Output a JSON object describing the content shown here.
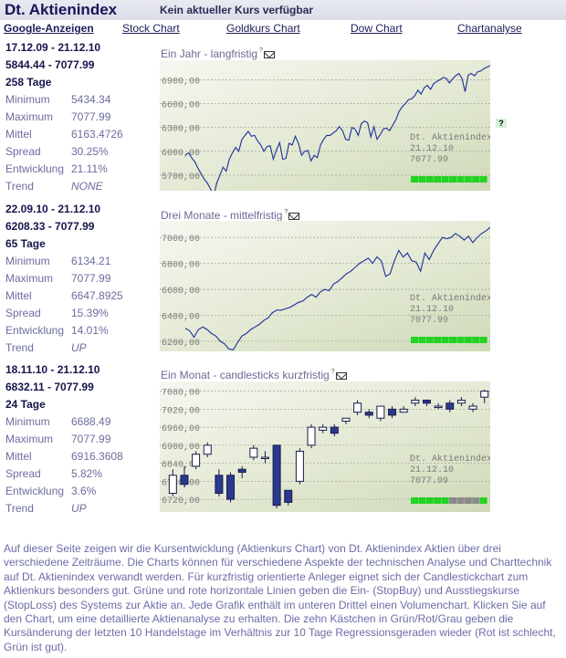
{
  "header": {
    "title": "Dt. Aktienindex",
    "status": "Kein aktueller Kurs verfügbar"
  },
  "nav": [
    {
      "label": "Google-Anzeigen"
    },
    {
      "label": "Stock Chart"
    },
    {
      "label": "Goldkurs Chart"
    },
    {
      "label": "Dow Chart"
    },
    {
      "label": "Chartanalyse"
    }
  ],
  "stat_labels": {
    "min": "Minimum",
    "max": "Maximum",
    "mean": "Mittel",
    "spread": "Spread",
    "dev": "Entwicklung",
    "trend": "Trend"
  },
  "periods": [
    {
      "range": "17.12.09 - 21.12.10",
      "kurs": "5844.44 - 7077.99",
      "tage": "258 Tage",
      "min": "5434.34",
      "max": "7077.99",
      "mean": "6163.4726",
      "spread": "30.25%",
      "dev": "21.11%",
      "trend": "NONE"
    },
    {
      "range": "22.09.10 - 21.12.10",
      "kurs": "6208.33 - 7077.99",
      "tage": "65 Tage",
      "min": "6134.21",
      "max": "7077.99",
      "mean": "6647.8925",
      "spread": "15.39%",
      "dev": "14.01%",
      "trend": "UP"
    },
    {
      "range": "18.11.10 - 21.12.10",
      "kurs": "6832.11 - 7077.99",
      "tage": "24 Tage",
      "min": "6688.49",
      "max": "7077.99",
      "mean": "6916.3608",
      "spread": "5.82%",
      "dev": "3.6%",
      "trend": "UP"
    }
  ],
  "charts": [
    {
      "title": "Ein Jahr - langfristig",
      "tag": "?"
    },
    {
      "title": "Drei Monate - mittelfristig",
      "tag": "?"
    },
    {
      "title": "Ein Monat - candlesticks kurzfristig",
      "tag": "?"
    }
  ],
  "help_label": "?",
  "colors": {
    "line": "#1c2f9a",
    "grid": "#a9ad9e",
    "green": "#22d322",
    "gray": "#8a8a8a",
    "candle_up": "#ffffff",
    "candle_down": "#2b3a8e"
  },
  "chart_data": [
    {
      "type": "line",
      "ylim": [
        5550,
        7100
      ],
      "yticks": [
        5700,
        6000,
        6300,
        6600,
        6900
      ],
      "yticklabels": [
        "5700,00",
        "6000,00",
        "6300,00",
        "6600,00",
        "6900,00"
      ],
      "legend": {
        "name": "Dt. Aktienindex",
        "date": "21.12.10",
        "value": "7077.99"
      },
      "boxes": [
        "green",
        "green",
        "green",
        "green",
        "green",
        "green",
        "green",
        "green",
        "green",
        "green"
      ],
      "values": [
        5950,
        5980,
        5920,
        5870,
        5790,
        5720,
        5650,
        5600,
        5530,
        5434,
        5600,
        5700,
        5800,
        5750,
        5900,
        5980,
        6050,
        6000,
        6150,
        6200,
        6250,
        6190,
        6200,
        6130,
        6080,
        6000,
        6060,
        6070,
        5900,
        6020,
        6110,
        5900,
        5910,
        6100,
        6080,
        6190,
        6100,
        5950,
        6000,
        6010,
        5880,
        5950,
        5920,
        6080,
        6150,
        6200,
        6200,
        6230,
        6260,
        6310,
        6260,
        6150,
        6140,
        6300,
        6280,
        6200,
        6350,
        6380,
        6360,
        6180,
        6310,
        6150,
        6210,
        6280,
        6290,
        6260,
        6330,
        6400,
        6500,
        6560,
        6600,
        6650,
        6660,
        6700,
        6770,
        6720,
        6800,
        6830,
        6780,
        6850,
        6880,
        6900,
        6930,
        6920,
        6860,
        6910,
        6950,
        6980,
        6920,
        6750,
        6960,
        6980,
        6950,
        7000,
        7010,
        7040,
        7060,
        7077.99
      ]
    },
    {
      "type": "line",
      "ylim": [
        6150,
        7100
      ],
      "yticks": [
        6200,
        6400,
        6600,
        6800,
        7000
      ],
      "yticklabels": [
        "6200,00",
        "6400,00",
        "6600,00",
        "6800,00",
        "7000,00"
      ],
      "legend": {
        "name": "Dt. Aktienindex",
        "date": "21.12.10",
        "value": "7077.99"
      },
      "boxes": [
        "green",
        "green",
        "green",
        "green",
        "green",
        "green",
        "green",
        "green",
        "green",
        "green"
      ],
      "values": [
        6300,
        6280,
        6230,
        6290,
        6310,
        6290,
        6260,
        6240,
        6200,
        6180,
        6140,
        6134,
        6190,
        6240,
        6260,
        6290,
        6310,
        6330,
        6360,
        6380,
        6420,
        6440,
        6440,
        6450,
        6460,
        6480,
        6500,
        6510,
        6540,
        6560,
        6540,
        6580,
        6600,
        6590,
        6640,
        6660,
        6690,
        6720,
        6740,
        6770,
        6800,
        6820,
        6840,
        6800,
        6850,
        6820,
        6700,
        6720,
        6820,
        6900,
        6850,
        6880,
        6820,
        6810,
        6740,
        6880,
        6830,
        6900,
        6950,
        7000,
        6990,
        7000,
        7030,
        7010,
        6980,
        7010,
        6960,
        7000,
        7030,
        7050,
        7077.99
      ]
    },
    {
      "type": "candlestick",
      "ylim": [
        6690,
        7100
      ],
      "yticks": [
        6720,
        6780,
        6840,
        6900,
        6960,
        7020,
        7080
      ],
      "yticklabels": [
        "6720,00",
        "6780,00",
        "6840,00",
        "6900,00",
        "6960,00",
        "7020,00",
        "7080,00"
      ],
      "legend": {
        "name": "Dt. Aktienindex",
        "date": "21.12.10",
        "value": "7077.99"
      },
      "boxes": [
        "green",
        "green",
        "green",
        "green",
        "green",
        "gray",
        "gray",
        "gray",
        "gray",
        "green"
      ],
      "candles": [
        {
          "o": 6740,
          "c": 6800,
          "h": 6820,
          "l": 6730
        },
        {
          "o": 6800,
          "c": 6770,
          "h": 6830,
          "l": 6760
        },
        {
          "o": 6830,
          "c": 6870,
          "h": 6880,
          "l": 6820
        },
        {
          "o": 6870,
          "c": 6900,
          "h": 6910,
          "l": 6860
        },
        {
          "o": 6800,
          "c": 6740,
          "h": 6820,
          "l": 6730
        },
        {
          "o": 6800,
          "c": 6720,
          "h": 6810,
          "l": 6710
        },
        {
          "o": 6820,
          "c": 6810,
          "h": 6830,
          "l": 6790
        },
        {
          "o": 6860,
          "c": 6890,
          "h": 6900,
          "l": 6850
        },
        {
          "o": 6860,
          "c": 6860,
          "h": 6880,
          "l": 6840
        },
        {
          "o": 6900,
          "c": 6700,
          "h": 6900,
          "l": 6690
        },
        {
          "o": 6750,
          "c": 6710,
          "h": 6750,
          "l": 6700
        },
        {
          "o": 6780,
          "c": 6880,
          "h": 6890,
          "l": 6770
        },
        {
          "o": 6900,
          "c": 6960,
          "h": 6970,
          "l": 6890
        },
        {
          "o": 6950,
          "c": 6960,
          "h": 6970,
          "l": 6940
        },
        {
          "o": 6960,
          "c": 6940,
          "h": 6970,
          "l": 6930
        },
        {
          "o": 6980,
          "c": 6990,
          "h": 6990,
          "l": 6970
        },
        {
          "o": 7010,
          "c": 7040,
          "h": 7050,
          "l": 7000
        },
        {
          "o": 7010,
          "c": 7000,
          "h": 7020,
          "l": 6990
        },
        {
          "o": 6990,
          "c": 7030,
          "h": 7030,
          "l": 6980
        },
        {
          "o": 7020,
          "c": 7000,
          "h": 7030,
          "l": 6990
        },
        {
          "o": 7010,
          "c": 7020,
          "h": 7030,
          "l": 7010
        },
        {
          "o": 7040,
          "c": 7050,
          "h": 7060,
          "l": 7030
        },
        {
          "o": 7050,
          "c": 7040,
          "h": 7050,
          "l": 7030
        },
        {
          "o": 7030,
          "c": 7030,
          "h": 7040,
          "l": 7020
        },
        {
          "o": 7040,
          "c": 7020,
          "h": 7050,
          "l": 7010
        },
        {
          "o": 7040,
          "c": 7050,
          "h": 7060,
          "l": 7030
        },
        {
          "o": 7020,
          "c": 7030,
          "h": 7040,
          "l": 7010
        },
        {
          "o": 7060,
          "c": 7080,
          "h": 7085,
          "l": 7040
        }
      ]
    }
  ],
  "description": "Auf dieser Seite zeigen wir die Kursentwicklung (Aktienkurs Chart) von Dt. Aktienindex Aktien über drei verschiedene Zeiträume. Die Charts können für verschiedene Aspekte der technischen Analyse und Charttechnik auf Dt. Aktienindex verwandt werden. Für kurzfristig orientierte Anleger eignet sich der Candlestickchart zum Aktienkurs besonders gut. Grüne und rote horizontale Linien geben die Ein- (StopBuy) und Ausstiegskurse (StopLoss) des Systems zur Aktie an. Jede Grafik enthält im unteren Drittel einen Volumenchart. Klicken Sie auf den Chart, um eine detaillierte Aktienanalyse zu erhalten. Die zehn Kästchen in Grün/Rot/Grau geben die Kursänderung der letzten 10 Handelstage im Verhältnis zur 10 Tage Regressionsgeraden wieder (Rot ist schlecht, Grün ist gut)."
}
